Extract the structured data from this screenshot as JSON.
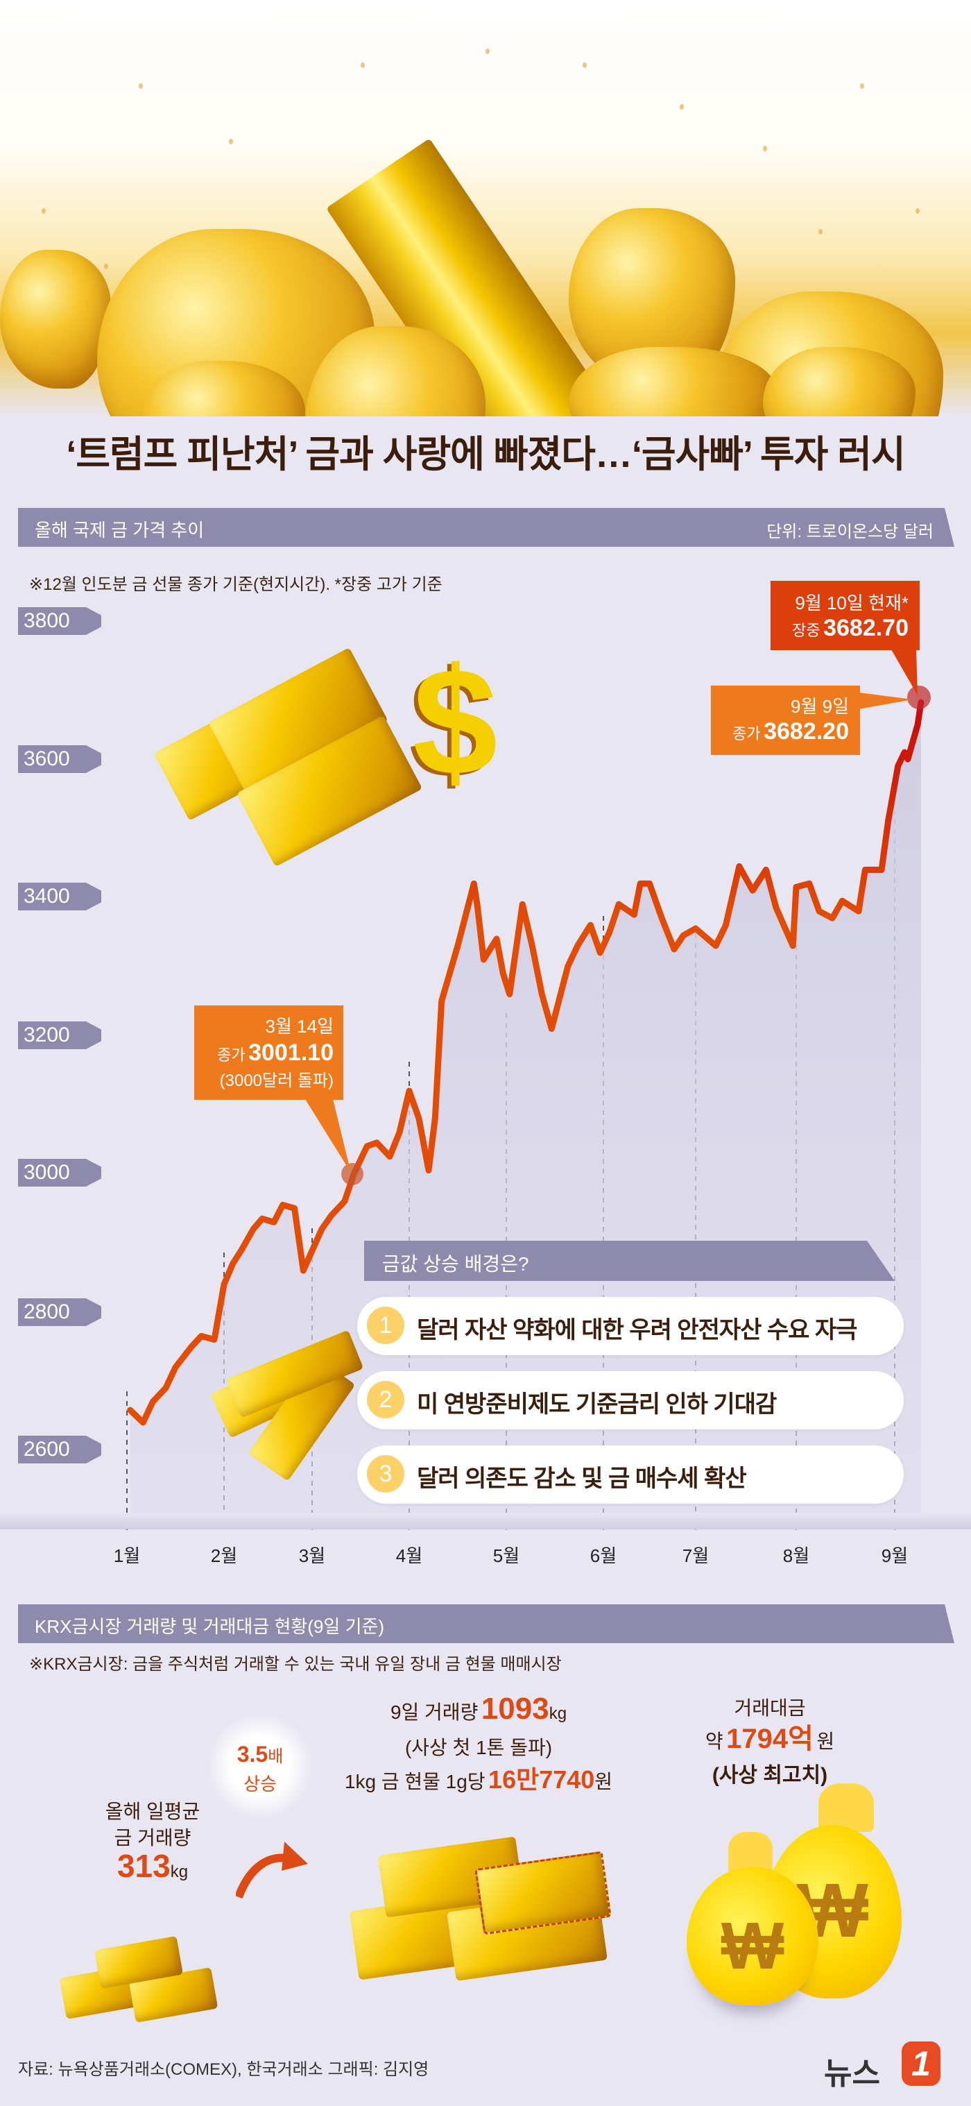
{
  "header": {
    "title": "‘트럼프 피난처’ 금과 사랑에 빠졌다…‘금사빠’ 투자 러시"
  },
  "section1": {
    "title": "올해 국제 금 가격 추이",
    "unit": "단위: 트로이온스당 달러",
    "note": "※12월 인도분 금 선물 종가 기준(현지시간).   *장중 고가 기준"
  },
  "callouts": {
    "mar14": {
      "date": "3월 14일",
      "prefix": "종가",
      "value": "3001.10",
      "sub": "(3000달러 돌파)"
    },
    "sep9": {
      "date": "9월 9일",
      "prefix": "종가",
      "value": "3682.20"
    },
    "sep10": {
      "date": "9월 10일 현재*",
      "prefix": "장중",
      "value": "3682.70"
    }
  },
  "reasons": {
    "title": "금값 상승 배경은?",
    "items": [
      {
        "num": "1",
        "text": "달러 자산 약화에 대한 우려 안전자산 수요 자극"
      },
      {
        "num": "2",
        "text": "미 연방준비제도 기준금리 인하 기대감"
      },
      {
        "num": "3",
        "text": "달러 의존도 감소 및 금 매수세 확산"
      }
    ]
  },
  "section2": {
    "title": "KRX금시장 거래량 및 거래대금 현황(9일 기준)",
    "note": "※KRX금시장: 금을 주식처럼 거래할 수 있는 국내 유일 장내 금 현물 매매시장",
    "avg": {
      "line1": "올해 일평균",
      "line2": "금 거래량",
      "value": "313",
      "unit": "kg"
    },
    "increase": {
      "value": "3.5",
      "unit": "배",
      "label": "상승"
    },
    "day9": {
      "prefix": "9일 거래량",
      "value": "1093",
      "unit": "kg",
      "sub": "(사상 첫 1톤 돌파)",
      "price_prefix": "1kg 금 현물 1g당",
      "price_value": "16만7740",
      "price_unit": "원"
    },
    "amount": {
      "label": "거래대금",
      "prefix": "약",
      "value": "1794억",
      "unit": "원",
      "sub": "(사상 최고치)"
    }
  },
  "footer": {
    "source": "자료: 뉴욕상품거래소(COMEX), 한국거래소   그래픽: 김지영",
    "logo_text": "뉴스",
    "logo_num": "1"
  },
  "colors": {
    "accent": "#dd4a13",
    "callout": "#ef7a1d",
    "callout_red": "#dc3e0c",
    "section_bar": "#8e8aab",
    "background": "#e8e6f1",
    "line": "#e24c04"
  },
  "chart_data": {
    "type": "line",
    "title": "올해 국제 금 가격 추이",
    "xlabel": "",
    "ylabel": "트로이온스당 달러",
    "ylim": [
      2600,
      3800
    ],
    "yticks": [
      3800,
      3600,
      3400,
      3200,
      3000,
      2800,
      2600
    ],
    "ytick_labels": [
      "3800",
      "3600",
      "3400",
      "3200",
      "3000",
      "2800",
      "2600"
    ],
    "xticks": [
      "1월",
      "2월",
      "3월",
      "4월",
      "5월",
      "6월",
      "7월",
      "8월",
      "9월"
    ],
    "grid": "vertical dashed lines at month starts",
    "legend": "none",
    "annotations": [
      {
        "x": "3월 14일",
        "y": 3001.1,
        "text": "3월 14일 종가 3001.10 (3000달러 돌파)"
      },
      {
        "x": "9월 9일",
        "y": 3682.2,
        "text": "9월 9일 종가 3682.20"
      },
      {
        "x": "9월 10일",
        "y": 3682.7,
        "text": "9월 10일 현재* 장중 3682.70"
      }
    ],
    "series": [
      {
        "name": "12월 인도분 금 선물 종가",
        "x": [
          "01-02",
          "01-06",
          "01-09",
          "01-13",
          "01-16",
          "01-21",
          "01-24",
          "01-28",
          "01-31",
          "02-04",
          "02-07",
          "02-11",
          "02-14",
          "02-18",
          "02-21",
          "02-25",
          "02-28",
          "03-04",
          "03-07",
          "03-11",
          "03-14",
          "03-18",
          "03-21",
          "03-25",
          "03-28",
          "04-01",
          "04-04",
          "04-07",
          "04-09",
          "04-11",
          "04-16",
          "04-21",
          "04-22",
          "04-24",
          "04-28",
          "04-30",
          "05-02",
          "05-06",
          "05-09",
          "05-12",
          "05-15",
          "05-20",
          "05-23",
          "05-27",
          "05-30",
          "06-03",
          "06-06",
          "06-11",
          "06-13",
          "06-16",
          "06-20",
          "06-24",
          "06-27",
          "07-01",
          "07-07",
          "07-10",
          "07-14",
          "07-18",
          "07-22",
          "07-25",
          "07-30",
          "08-01",
          "08-05",
          "08-08",
          "08-12",
          "08-15",
          "08-20",
          "08-22",
          "08-27",
          "08-29",
          "09-02",
          "09-04",
          "09-05",
          "09-08",
          "09-09"
        ],
        "values": [
          2658,
          2640,
          2670,
          2690,
          2720,
          2750,
          2765,
          2760,
          2840,
          2870,
          2890,
          2920,
          2935,
          2930,
          2955,
          2950,
          2860,
          2920,
          2940,
          2960,
          3001.1,
          3040,
          3045,
          3025,
          3060,
          3120,
          3080,
          3005,
          3080,
          3250,
          3330,
          3420,
          3390,
          3310,
          3340,
          3290,
          3260,
          3390,
          3330,
          3260,
          3210,
          3300,
          3330,
          3360,
          3320,
          3350,
          3390,
          3375,
          3420,
          3420,
          3370,
          3325,
          3345,
          3355,
          3330,
          3360,
          3445,
          3410,
          3440,
          3385,
          3330,
          3415,
          3420,
          3380,
          3370,
          3395,
          3380,
          3440,
          3440,
          3510,
          3590,
          3610,
          3600,
          3650,
          3682.2
        ]
      }
    ]
  }
}
